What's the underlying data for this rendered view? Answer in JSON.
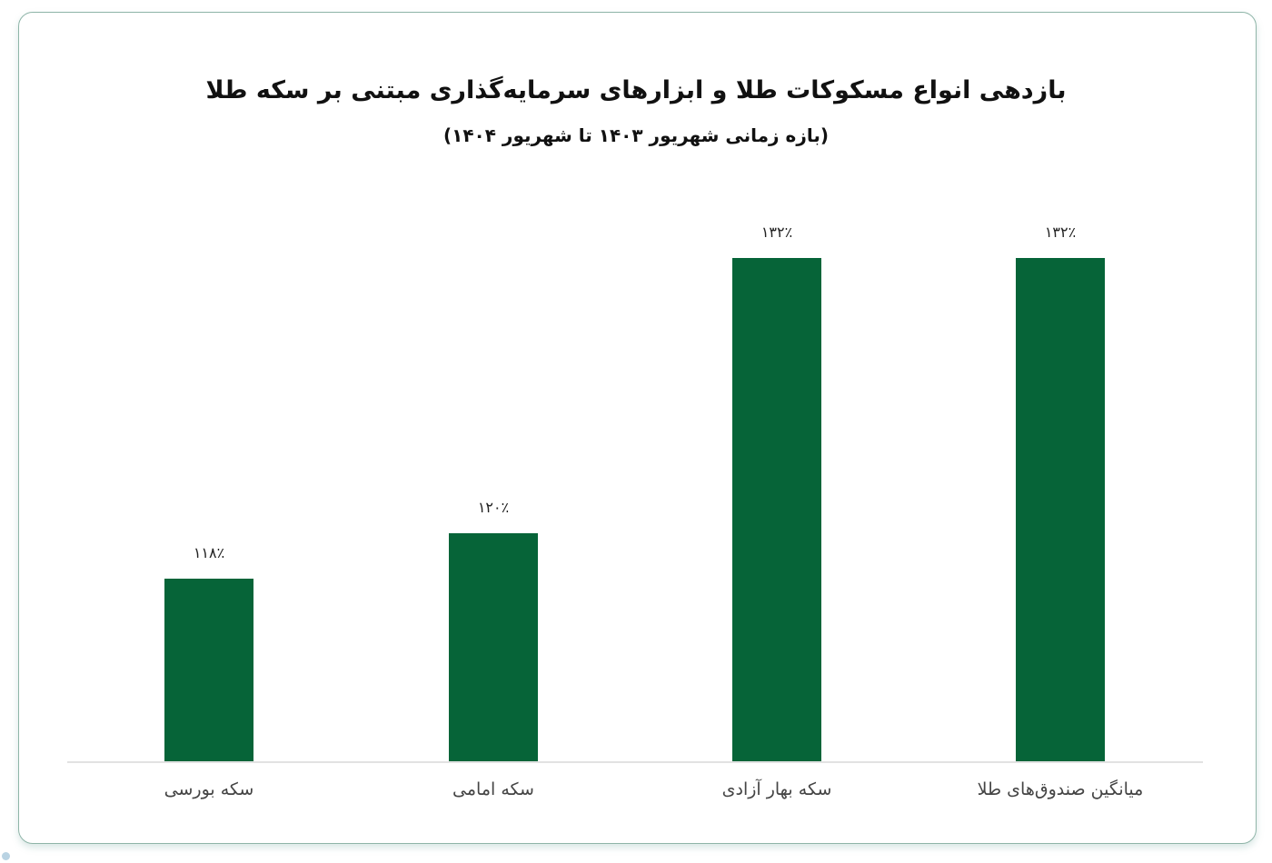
{
  "chart_data": {
    "type": "bar",
    "title": "بازدهی انواع مسکوکات طلا و ابزارهای سرمایه‌گذاری مبتنی بر سکه طلا",
    "subtitle": "(بازه زمانی شهریور ۱۴۰۳ تا شهریور ۱۴۰۴)",
    "categories": [
      "سکه بورسی",
      "سکه امامی",
      "سکه بهار آزادی",
      "میانگین صندوق‌های طلا"
    ],
    "values": [
      118,
      120,
      132,
      132
    ],
    "value_labels": [
      "۱۱۸٪",
      "۱۲۰٪",
      "۱۳۲٪",
      "۱۳۲٪"
    ],
    "xlabel": "",
    "ylabel": "",
    "ylim": [
      110,
      132
    ],
    "grid": false,
    "legend": "none",
    "bar_color": "#066438"
  },
  "colors": {
    "bar": "#066438",
    "card_border": "#8fb5a8",
    "baseline": "#e2e2e2"
  }
}
